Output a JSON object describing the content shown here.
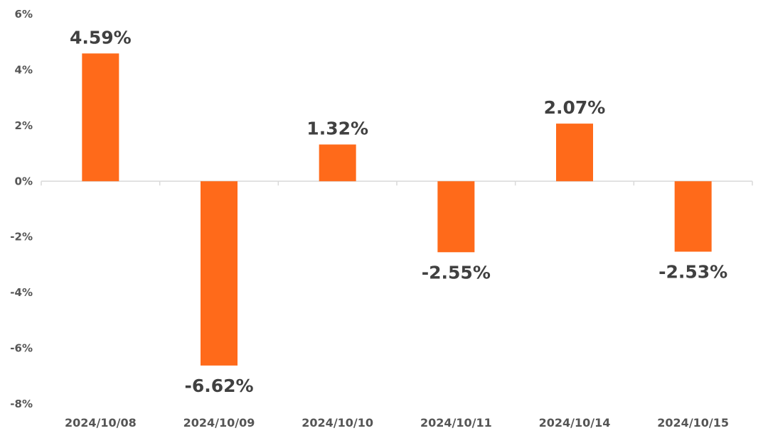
{
  "chart_data": {
    "type": "bar",
    "title": "",
    "xlabel": "",
    "ylabel": "",
    "categories": [
      "2024/10/08",
      "2024/10/09",
      "2024/10/10",
      "2024/10/11",
      "2024/10/14",
      "2024/10/15"
    ],
    "values": [
      4.59,
      -6.62,
      1.32,
      -2.55,
      2.07,
      -2.53
    ],
    "data_labels": [
      "4.59%",
      "-6.62%",
      "1.32%",
      "-2.55%",
      "2.07%",
      "-2.53%"
    ],
    "ylim": [
      -8,
      6
    ],
    "yticks": [
      6,
      4,
      2,
      0,
      -2,
      -4,
      -6,
      -8
    ],
    "ytick_labels": [
      "6%",
      "4%",
      "2%",
      "0%",
      "-2%",
      "-4%",
      "-6%",
      "-8%"
    ],
    "grid": false,
    "legend": "none",
    "bar_color": "#FF6A1A",
    "axis_color": "#D9D9D9"
  }
}
